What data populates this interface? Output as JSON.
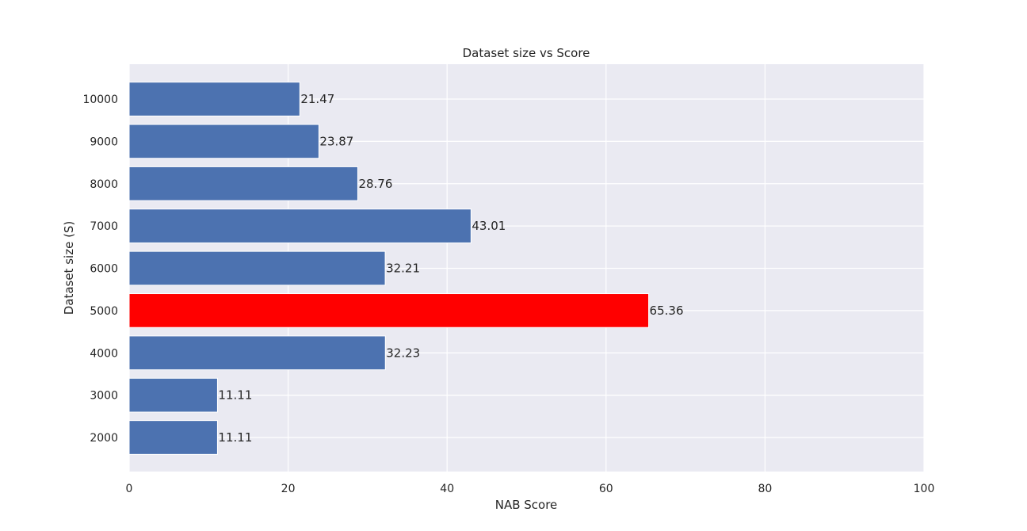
{
  "chart_data": {
    "type": "bar",
    "orientation": "horizontal",
    "title": "Dataset size vs Score",
    "xlabel": "NAB Score",
    "ylabel": "Dataset size (S)",
    "xlim": [
      0,
      100
    ],
    "x_ticks": [
      0,
      20,
      40,
      60,
      80,
      100
    ],
    "categories": [
      "2000",
      "3000",
      "4000",
      "5000",
      "6000",
      "7000",
      "8000",
      "9000",
      "10000"
    ],
    "values": [
      11.11,
      11.11,
      32.23,
      65.36,
      32.21,
      43.01,
      28.76,
      23.87,
      21.47
    ],
    "value_labels": [
      "11.11",
      "11.11",
      "32.23",
      "65.36",
      "32.21",
      "43.01",
      "28.76",
      "23.87",
      "21.47"
    ],
    "bar_color": "#4c72b0",
    "highlight_color": "#ff0000",
    "highlight_category": "5000",
    "plot_background": "#eaeaf2",
    "grid": true,
    "grid_color": "#ffffff",
    "legend": false
  }
}
